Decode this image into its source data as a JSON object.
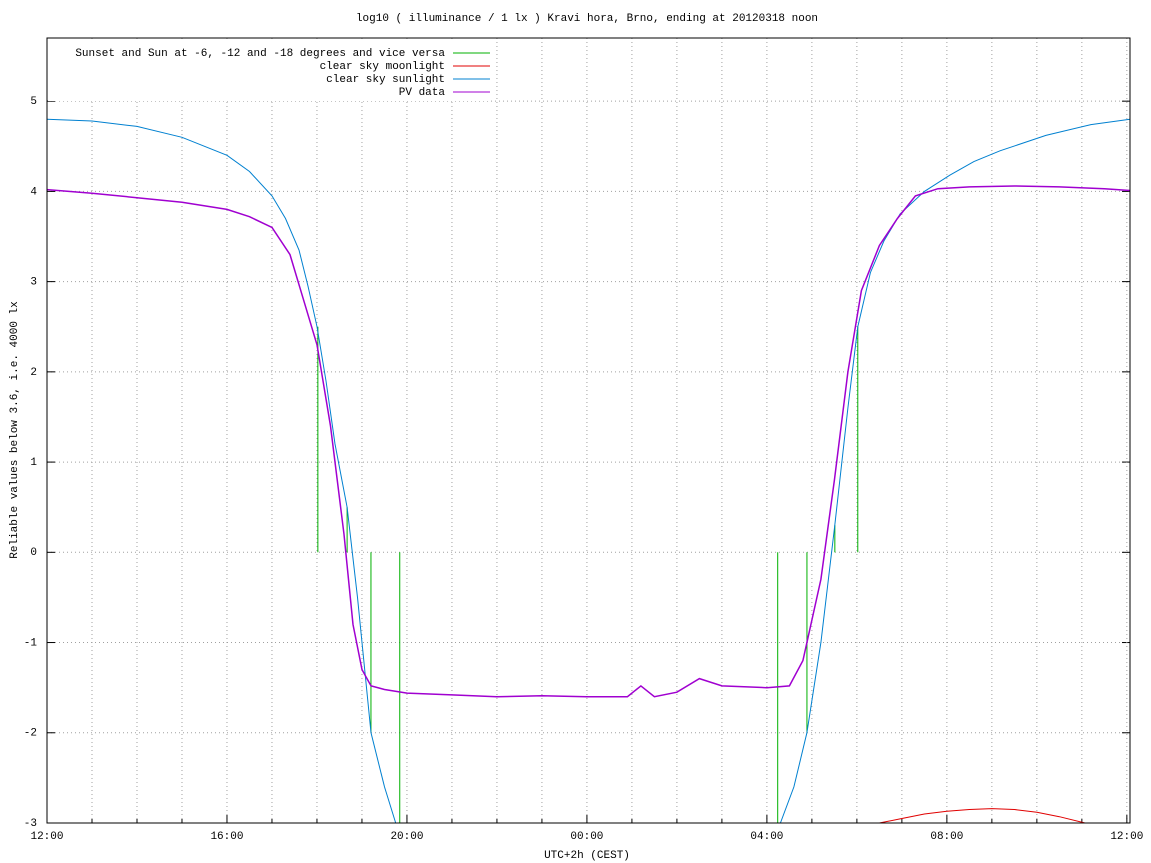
{
  "chart_data": {
    "type": "line",
    "title": "log10 ( illuminance / 1 lx ) Kravi hora, Brno, ending at 20120318 noon",
    "x_label": "UTC+2h (CEST)",
    "y_label": "Reliable values below 3.6, i.e. 4000 lx",
    "xlim": [
      0,
      24.07
    ],
    "ylim": [
      -3,
      5.7
    ],
    "xticks": [
      {
        "value": 0,
        "label": "12:00"
      },
      {
        "value": 4,
        "label": "16:00"
      },
      {
        "value": 8,
        "label": "20:00"
      },
      {
        "value": 12,
        "label": "00:00"
      },
      {
        "value": 16,
        "label": "04:00"
      },
      {
        "value": 20,
        "label": "08:00"
      },
      {
        "value": 24,
        "label": "12:00"
      }
    ],
    "x_minor_ticks": [
      1,
      2,
      3,
      5,
      6,
      7,
      9,
      10,
      11,
      13,
      14,
      15,
      17,
      18,
      19,
      21,
      22,
      23
    ],
    "yticks": [
      -3,
      -2,
      -1,
      0,
      1,
      2,
      3,
      4,
      5
    ],
    "grid": true,
    "legend": "top-left",
    "series": [
      {
        "name": "Sunset and Sun at -6, -12 and -18 degrees and vice versa",
        "color": "#00b000",
        "style": "impulses",
        "x": [
          6.02,
          6.67,
          7.2,
          7.84,
          16.24,
          16.89,
          17.51,
          18.02
        ],
        "values": [
          2.5,
          0.5,
          -2,
          -3,
          -3,
          -2,
          0.3,
          2.5
        ]
      },
      {
        "name": "clear sky moonlight",
        "color": "#e00000",
        "style": "line",
        "x": [
          18.5,
          19.0,
          19.5,
          20.0,
          20.5,
          21.0,
          21.5,
          22.0,
          22.5,
          23.07
        ],
        "values": [
          -3,
          -2.95,
          -2.9,
          -2.87,
          -2.85,
          -2.84,
          -2.85,
          -2.88,
          -2.93,
          -3
        ]
      },
      {
        "name": "clear sky sunlight",
        "color": "#0080d0",
        "style": "line",
        "x": [
          0,
          1,
          2,
          3,
          4,
          4.5,
          5,
          5.3,
          5.6,
          5.8,
          6.0,
          6.2,
          6.4,
          6.67,
          6.9,
          7.2,
          7.5,
          7.75,
          16.3,
          16.6,
          16.89,
          17.2,
          17.51,
          17.8,
          18.02,
          18.3,
          18.6,
          18.96,
          19.5,
          20.07,
          20.6,
          21.18,
          22.2,
          23.2,
          24.07
        ],
        "values": [
          4.8,
          4.78,
          4.72,
          4.6,
          4.4,
          4.22,
          3.95,
          3.7,
          3.35,
          2.95,
          2.5,
          1.9,
          1.2,
          0.5,
          -0.5,
          -2,
          -2.6,
          -3,
          -3,
          -2.6,
          -2,
          -1,
          0.3,
          1.6,
          2.5,
          3.1,
          3.45,
          3.75,
          4.0,
          4.18,
          4.33,
          4.45,
          4.62,
          4.74,
          4.8
        ]
      },
      {
        "name": "PV data",
        "color": "#a000d0",
        "style": "line",
        "x": [
          0,
          1,
          2,
          3,
          4,
          4.5,
          5,
          5.4,
          5.7,
          6.0,
          6.3,
          6.6,
          6.8,
          7.0,
          7.2,
          7.5,
          8,
          9,
          10,
          11,
          12,
          12.9,
          13.2,
          13.5,
          14.0,
          14.5,
          15,
          16,
          16.5,
          16.8,
          17.2,
          17.5,
          17.8,
          18.1,
          18.5,
          18.9,
          19.3,
          19.8,
          20.5,
          21.5,
          22.5,
          23.5,
          24.07
        ],
        "values": [
          4.02,
          3.98,
          3.93,
          3.88,
          3.8,
          3.72,
          3.6,
          3.3,
          2.8,
          2.3,
          1.4,
          0.2,
          -0.8,
          -1.3,
          -1.48,
          -1.52,
          -1.56,
          -1.58,
          -1.6,
          -1.59,
          -1.6,
          -1.6,
          -1.48,
          -1.6,
          -1.55,
          -1.4,
          -1.48,
          -1.5,
          -1.48,
          -1.2,
          -0.3,
          0.8,
          2.0,
          2.9,
          3.4,
          3.7,
          3.95,
          4.03,
          4.05,
          4.06,
          4.05,
          4.03,
          4.01
        ]
      }
    ]
  }
}
